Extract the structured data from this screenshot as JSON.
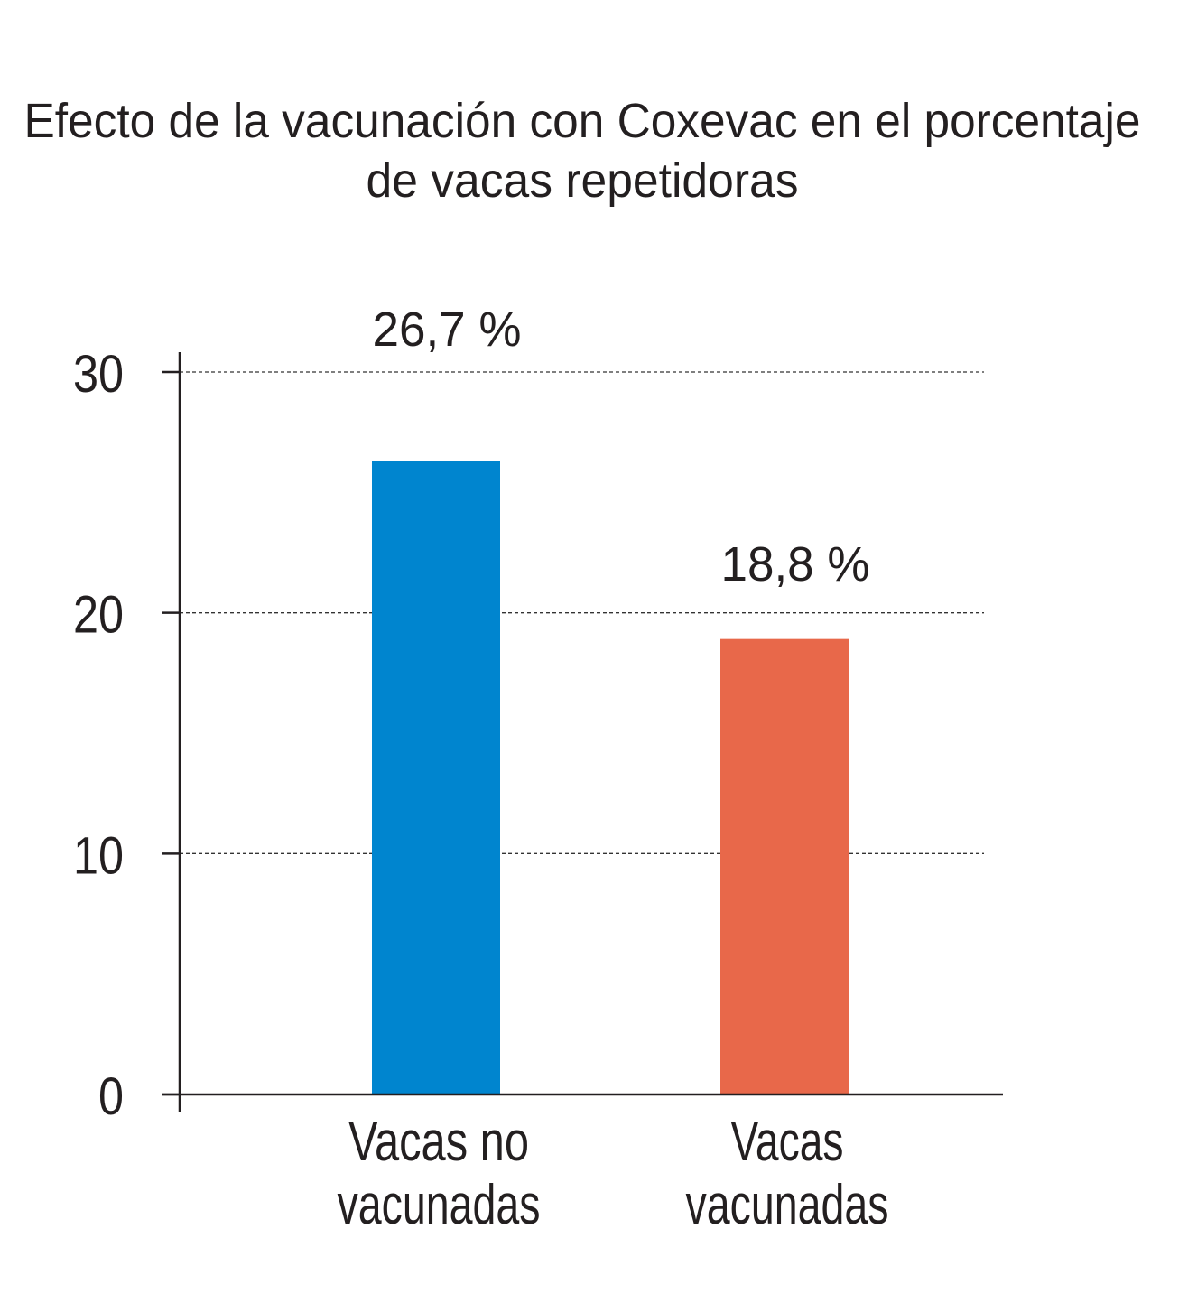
{
  "chart_data": {
    "type": "bar",
    "title": "Efecto de la vacunación con Coxevac en el porcentaje de vacas repetidoras",
    "title_lines": [
      "Efecto de la vacunación con Coxevac en el porcentaje",
      "de vacas repetidoras"
    ],
    "categories": [
      "Vacas no vacunadas",
      "Vacas vacunadas"
    ],
    "category_lines": [
      [
        "Vacas no",
        "vacunadas"
      ],
      [
        "Vacas",
        "vacunadas"
      ]
    ],
    "values": [
      26.7,
      18.8
    ],
    "data_labels": [
      "26,7 %",
      "18,8 %"
    ],
    "colors": [
      "#0085cf",
      "#e8684a"
    ],
    "xlabel": "",
    "ylabel": "",
    "ylim": [
      0,
      30
    ],
    "yticks": [
      0,
      10,
      20,
      30
    ],
    "ytick_labels": [
      "0",
      "10",
      "20",
      "30"
    ],
    "grid": true,
    "legend": "none"
  }
}
